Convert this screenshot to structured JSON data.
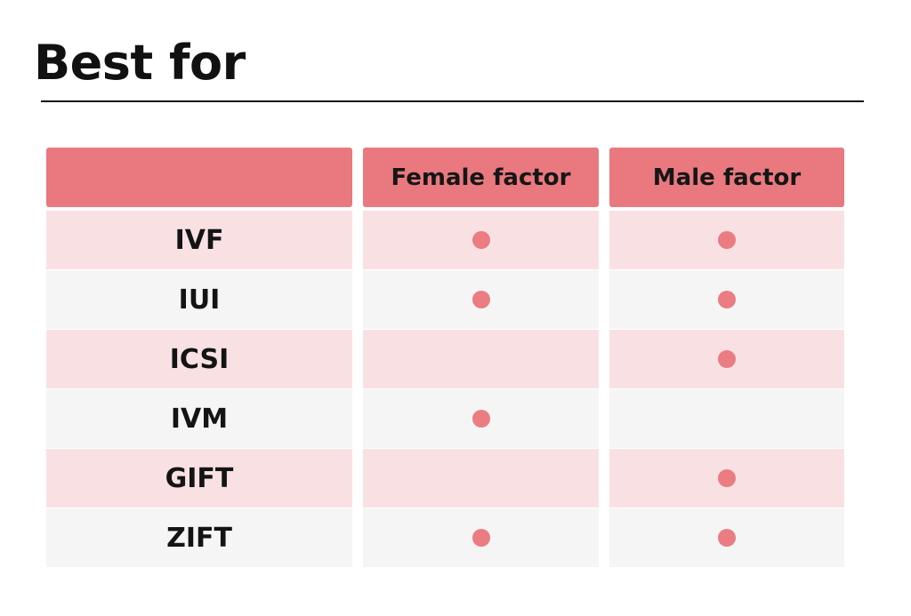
{
  "title": "Best for",
  "colors": {
    "header": "#e9797f",
    "row_pink": "#f9e1e3",
    "row_grey": "#f5f5f5",
    "dot": "#ea7c82"
  },
  "table": {
    "columns": [
      "",
      "Female factor",
      "Male factor"
    ],
    "rows": [
      {
        "method": "IVF",
        "female": true,
        "male": true
      },
      {
        "method": "IUI",
        "female": true,
        "male": true
      },
      {
        "method": "ICSI",
        "female": false,
        "male": true
      },
      {
        "method": "IVM",
        "female": true,
        "male": false
      },
      {
        "method": "GIFT",
        "female": false,
        "male": true
      },
      {
        "method": "ZIFT",
        "female": true,
        "male": true
      }
    ]
  }
}
